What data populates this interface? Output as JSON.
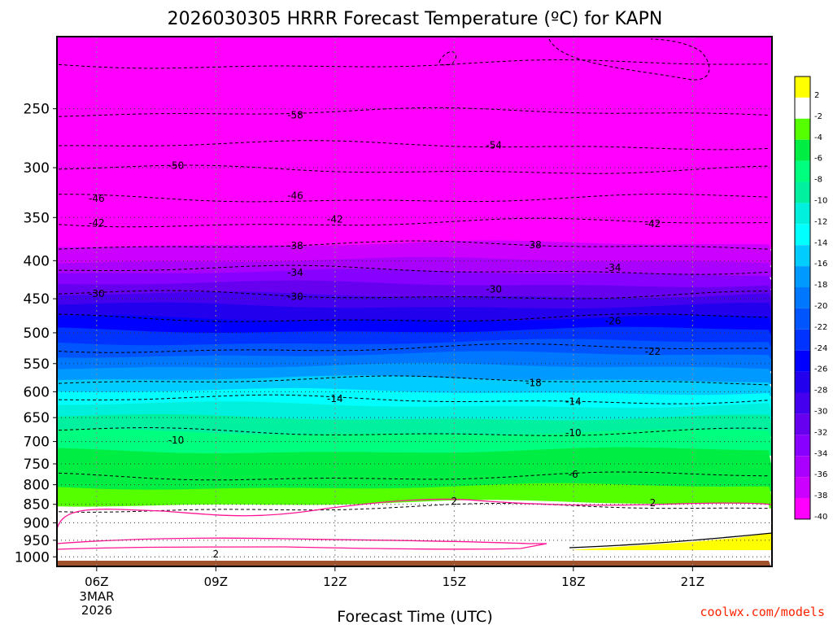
{
  "chart_data": {
    "type": "heatmap",
    "title": "2026030305 HRRR Forecast Temperature (ºC) for KAPN",
    "xlabel": "Forecast Time (UTC)",
    "ylabel": "",
    "x_ticks": [
      "06Z",
      "09Z",
      "12Z",
      "15Z",
      "18Z",
      "21Z"
    ],
    "x_hours": [
      6,
      9,
      12,
      15,
      18,
      21
    ],
    "x_range_hours": [
      5,
      23
    ],
    "x_date_lines": [
      "3MAR",
      "2026"
    ],
    "y_ticks": [
      250,
      300,
      350,
      400,
      450,
      500,
      550,
      600,
      650,
      700,
      750,
      800,
      850,
      900,
      950,
      1000
    ],
    "y_range_hPa": [
      200,
      1030
    ],
    "y_scale": "log-pressure",
    "colorbar": {
      "levels": [
        "2",
        "-2",
        "-4",
        "-6",
        "-8",
        "-10",
        "-12",
        "-14",
        "-16",
        "-18",
        "-20",
        "-22",
        "-24",
        "-26",
        "-28",
        "-30",
        "-32",
        "-34",
        "-36",
        "-38",
        "-40"
      ],
      "colors": [
        "#ffff00",
        "#ffffff",
        "#55ff00",
        "#00ee44",
        "#00ff7f",
        "#00f0a0",
        "#00f0dd",
        "#00ffff",
        "#00ccff",
        "#0099ff",
        "#0077ff",
        "#0055ff",
        "#0033ff",
        "#0000ff",
        "#2200ee",
        "#4400ee",
        "#6600ee",
        "#8800ff",
        "#aa00ff",
        "#cc00ff",
        "#ff00ff"
      ]
    },
    "temperature_bands": [
      {
        "p": 200,
        "color": "#ff00ff"
      },
      {
        "p": 380,
        "color": "#cc00ff"
      },
      {
        "p": 400,
        "color": "#aa00ff"
      },
      {
        "p": 415,
        "color": "#8800ff"
      },
      {
        "p": 430,
        "color": "#6600ee"
      },
      {
        "p": 445,
        "color": "#4400ee"
      },
      {
        "p": 460,
        "color": "#2200ee"
      },
      {
        "p": 478,
        "color": "#0000ff"
      },
      {
        "p": 496,
        "color": "#0033ff"
      },
      {
        "p": 515,
        "color": "#0055ff"
      },
      {
        "p": 535,
        "color": "#0077ff"
      },
      {
        "p": 555,
        "color": "#0099ff"
      },
      {
        "p": 577,
        "color": "#00ccff"
      },
      {
        "p": 600,
        "color": "#00ffff"
      },
      {
        "p": 625,
        "color": "#00f0dd"
      },
      {
        "p": 650,
        "color": "#00f0a0"
      },
      {
        "p": 680,
        "color": "#00ff7f"
      },
      {
        "p": 720,
        "color": "#00ee44"
      },
      {
        "p": 805,
        "color": "#55ff00"
      },
      {
        "p": 848,
        "color": "#ffffff"
      },
      {
        "p": 1012,
        "color": "#a0522d"
      }
    ],
    "contour_labels": [
      {
        "t": 11,
        "p": 255,
        "text": "-58"
      },
      {
        "t": 16,
        "p": 280,
        "text": "-54"
      },
      {
        "t": 8,
        "p": 298,
        "text": "-50"
      },
      {
        "t": 6,
        "p": 330,
        "text": "-46"
      },
      {
        "t": 11,
        "p": 327,
        "text": "-46"
      },
      {
        "t": 6,
        "p": 356,
        "text": "-42"
      },
      {
        "t": 12,
        "p": 352,
        "text": "-42"
      },
      {
        "t": 20,
        "p": 357,
        "text": "-42"
      },
      {
        "t": 11,
        "p": 382,
        "text": "-38"
      },
      {
        "t": 17,
        "p": 381,
        "text": "-38"
      },
      {
        "t": 11,
        "p": 415,
        "text": "-34"
      },
      {
        "t": 19,
        "p": 409,
        "text": "-34"
      },
      {
        "t": 6,
        "p": 443,
        "text": "-30"
      },
      {
        "t": 11,
        "p": 447,
        "text": "-30"
      },
      {
        "t": 16,
        "p": 437,
        "text": "-30"
      },
      {
        "t": 19,
        "p": 482,
        "text": "-26"
      },
      {
        "t": 20,
        "p": 530,
        "text": "-22"
      },
      {
        "t": 17,
        "p": 584,
        "text": "-18"
      },
      {
        "t": 12,
        "p": 613,
        "text": "-14"
      },
      {
        "t": 18,
        "p": 619,
        "text": "-14"
      },
      {
        "t": 8,
        "p": 697,
        "text": "-10"
      },
      {
        "t": 18,
        "p": 682,
        "text": "-10"
      },
      {
        "t": 18,
        "p": 775,
        "text": "-6"
      },
      {
        "t": 15,
        "p": 842,
        "text": "2"
      },
      {
        "t": 20,
        "p": 846,
        "text": "2"
      },
      {
        "t": 9,
        "p": 992,
        "text": "2"
      }
    ]
  },
  "credit": "coolwx.com/models"
}
